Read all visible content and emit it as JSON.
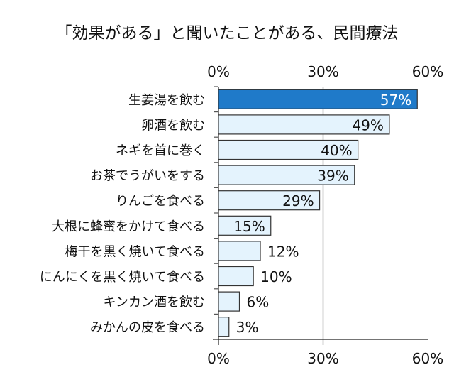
{
  "chart_data": {
    "type": "bar",
    "orientation": "horizontal",
    "title": "「効果がある」と聞いたことがある、民間療法",
    "categories": [
      "生姜湯を飲む",
      "卵酒を飲む",
      "ネギを首に巻く",
      "お茶でうがいをする",
      "りんごを食べる",
      "大根に蜂蜜をかけて食べる",
      "梅干を黒く焼いて食べる",
      "にんにくを黒く焼いて食べる",
      "キンカン酒を飲む",
      "みかんの皮を食べる"
    ],
    "values": [
      57,
      49,
      40,
      39,
      29,
      15,
      12,
      10,
      6,
      3
    ],
    "data_labels": [
      "57%",
      "49%",
      "40%",
      "39%",
      "29%",
      "15%",
      "12%",
      "10%",
      "6%",
      "3%"
    ],
    "xlim": [
      0,
      60
    ],
    "xticks": [
      "0%",
      "30%",
      "60%"
    ],
    "xtick_values": [
      0,
      30,
      60
    ],
    "tick_labels_position": "top and bottom",
    "grid": "vertical at 30%",
    "colors": {
      "highlight": "#1f7ac9",
      "bar": "#e4f3fd",
      "border": "#333333"
    }
  }
}
